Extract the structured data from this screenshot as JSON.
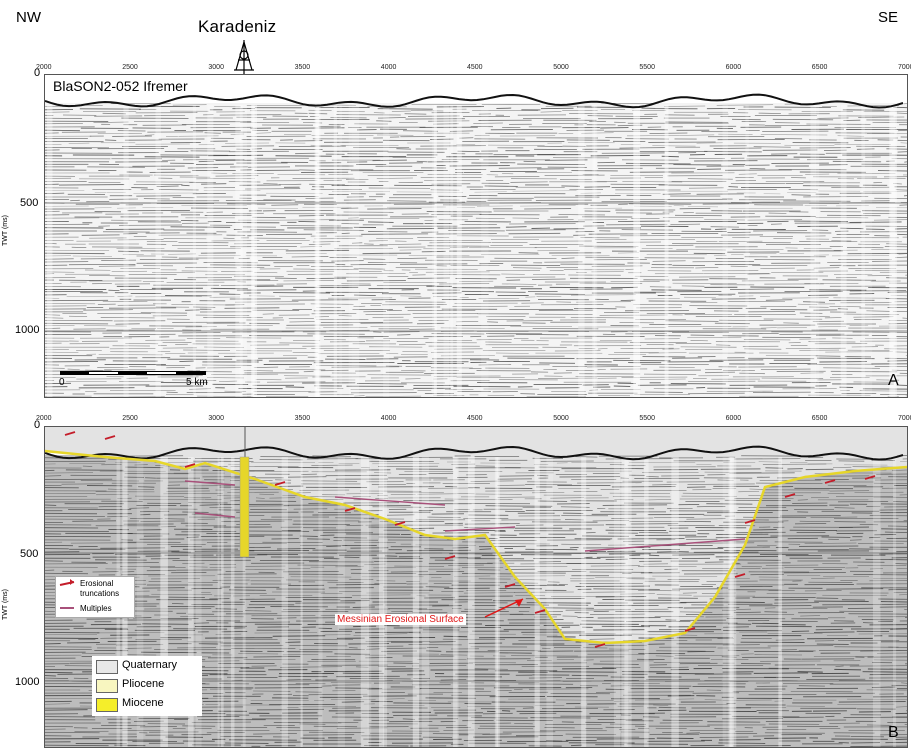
{
  "header": {
    "direction_left": "NW",
    "direction_right": "SE",
    "well_name": "Karadeniz"
  },
  "panel_a": {
    "line_label": "BlaSON2-052  Ifremer",
    "panel_letter": "A",
    "scale_start": "0",
    "scale_end": "5 km"
  },
  "panel_b": {
    "panel_letter": "B"
  },
  "axes": {
    "cdp_ticks": [
      "2000",
      "2500",
      "3000",
      "3500",
      "4000",
      "4500",
      "5000",
      "5500",
      "6000",
      "6500",
      "7000"
    ],
    "twt_label": "TWT (ms)",
    "twt_zero": "0",
    "twt_ticks": [
      "500",
      "1000"
    ]
  },
  "annotations": {
    "erosional_label_1": "Erosional",
    "erosional_label_2": "truncations",
    "multiples_label": "Multiples",
    "mes_label": "Messinian Erosional Surface"
  },
  "legend": [
    {
      "label": "Quaternary",
      "color": "#e8e8e8"
    },
    {
      "label": "Pliocene",
      "color": "#f8f6c0"
    },
    {
      "label": "Miocene",
      "color": "#f5ee2a"
    }
  ],
  "colors": {
    "surface": "#e6d62a",
    "truncation": "#c41d2a",
    "multiple": "#a8507a",
    "mes_text": "#e01818"
  }
}
